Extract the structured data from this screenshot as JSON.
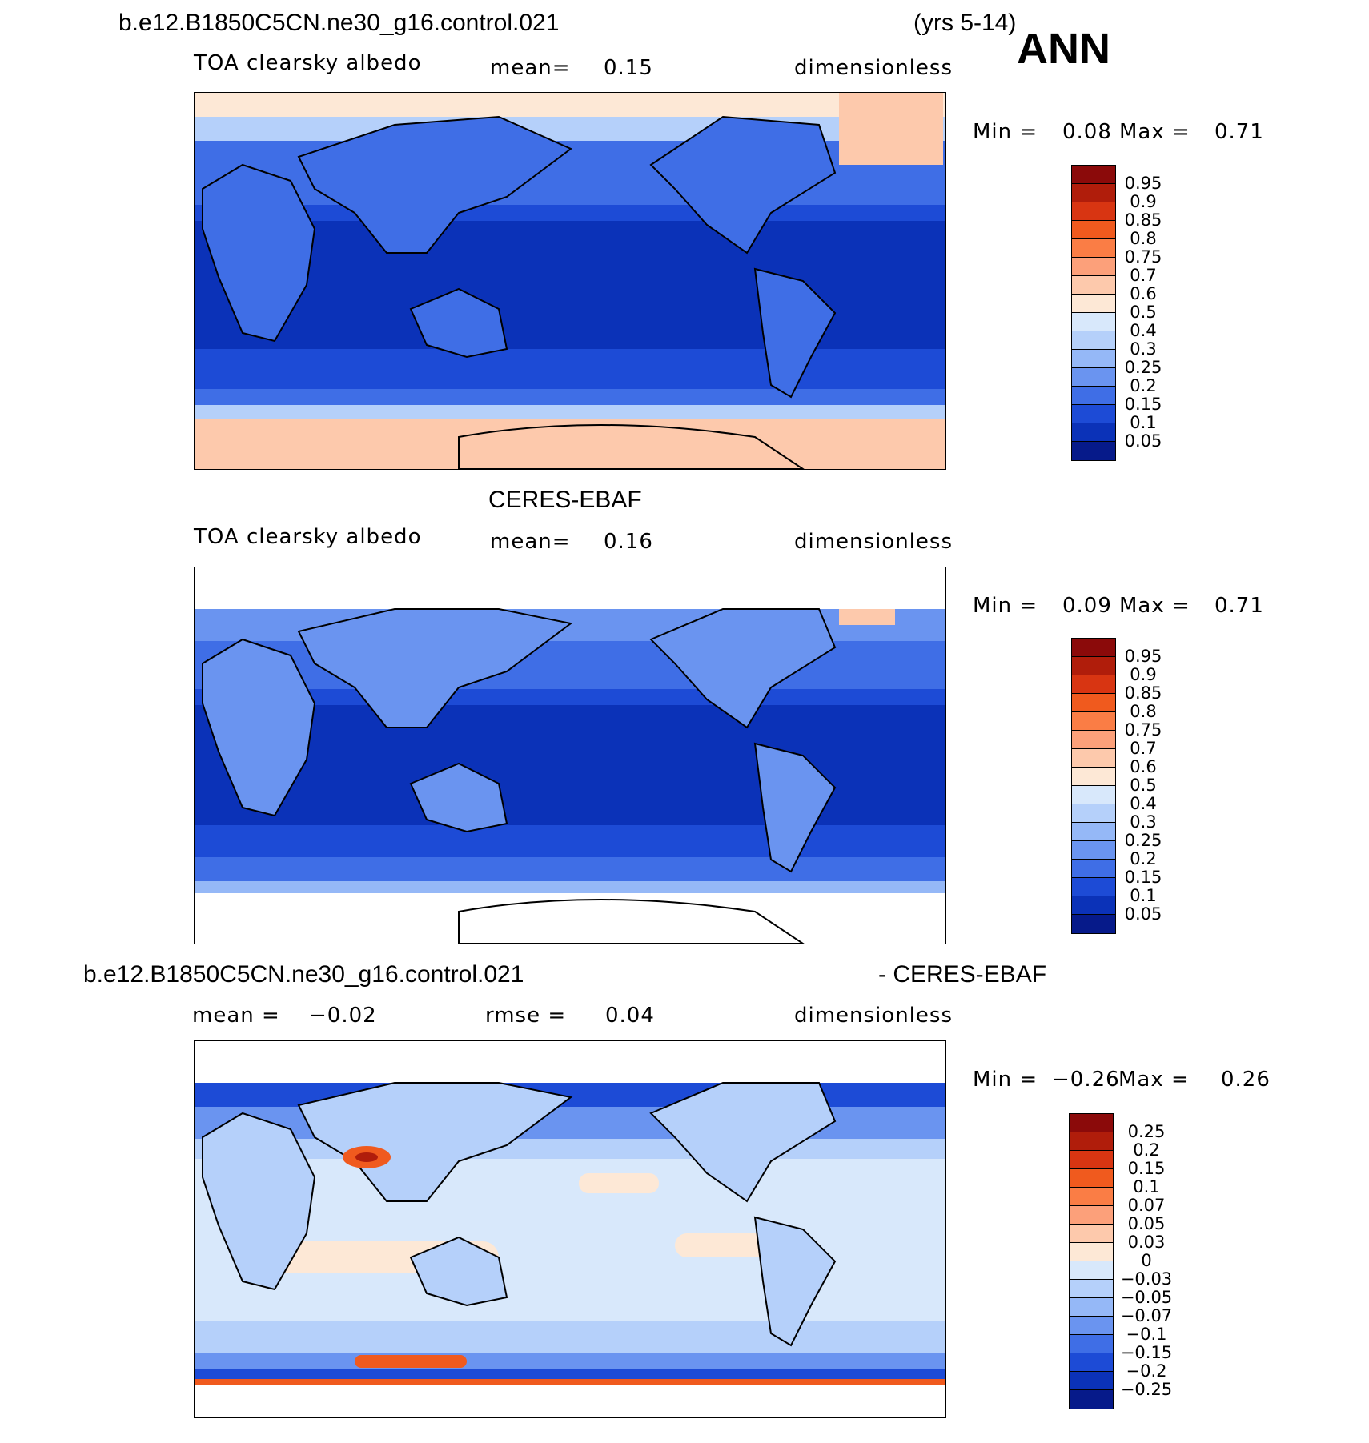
{
  "season": "ANN",
  "panels": [
    {
      "case": "b.e12.B1850C5CN.ne30_g16.control.021",
      "years": "(yrs 5-14)",
      "variable": "TOA clearsky albedo",
      "stat1_label": "mean=",
      "stat1_value": "0.15",
      "units": "dimensionless",
      "min_label": "Min =",
      "min_value": "0.08",
      "max_label": "Max =",
      "max_value": "0.71",
      "colorbar_labels": [
        "0.95",
        "0.9",
        "0.85",
        "0.8",
        "0.75",
        "0.7",
        "0.6",
        "0.5",
        "0.4",
        "0.3",
        "0.25",
        "0.2",
        "0.15",
        "0.1",
        "0.05"
      ]
    },
    {
      "case": "CERES-EBAF",
      "variable": "TOA clearsky albedo",
      "stat1_label": "mean=",
      "stat1_value": "0.16",
      "units": "dimensionless",
      "min_label": "Min =",
      "min_value": "0.09",
      "max_label": "Max =",
      "max_value": "0.71",
      "colorbar_labels": [
        "0.95",
        "0.9",
        "0.85",
        "0.8",
        "0.75",
        "0.7",
        "0.6",
        "0.5",
        "0.4",
        "0.3",
        "0.25",
        "0.2",
        "0.15",
        "0.1",
        "0.05"
      ]
    },
    {
      "case": "b.e12.B1850C5CN.ne30_g16.control.021",
      "case_suffix": "- CERES-EBAF",
      "stat1_label": "mean =",
      "stat1_value": "−0.02",
      "stat2_label": "rmse =",
      "stat2_value": "0.04",
      "units": "dimensionless",
      "min_label": "Min =",
      "min_value": "−0.26",
      "max_label": "Max =",
      "max_value": "0.26",
      "colorbar_labels": [
        "0.25",
        "0.2",
        "0.15",
        "0.1",
        "0.07",
        "0.05",
        "0.03",
        "0",
        "−0.03",
        "−0.05",
        "−0.07",
        "−0.1",
        "−0.15",
        "−0.2",
        "−0.25"
      ]
    }
  ],
  "colors": {
    "abs_scale": [
      "#8b0a0a",
      "#b01d0b",
      "#d83512",
      "#f05a1e",
      "#fa7d45",
      "#fca07a",
      "#fdc9ac",
      "#fde8d6",
      "#d8e8fb",
      "#b5d0fa",
      "#95b8f7",
      "#6a94f0",
      "#3f6ee6",
      "#1d4bd6",
      "#0b32b8",
      "#061a8a"
    ],
    "diff_scale": [
      "#8b0a0a",
      "#b01d0b",
      "#d83512",
      "#f05a1e",
      "#fa7d45",
      "#fca07a",
      "#fdc9ac",
      "#fde8d6",
      "#d8e8fb",
      "#b5d0fa",
      "#95b8f7",
      "#6a94f0",
      "#3f6ee6",
      "#1d4bd6",
      "#0b32b8",
      "#061a8a"
    ]
  }
}
